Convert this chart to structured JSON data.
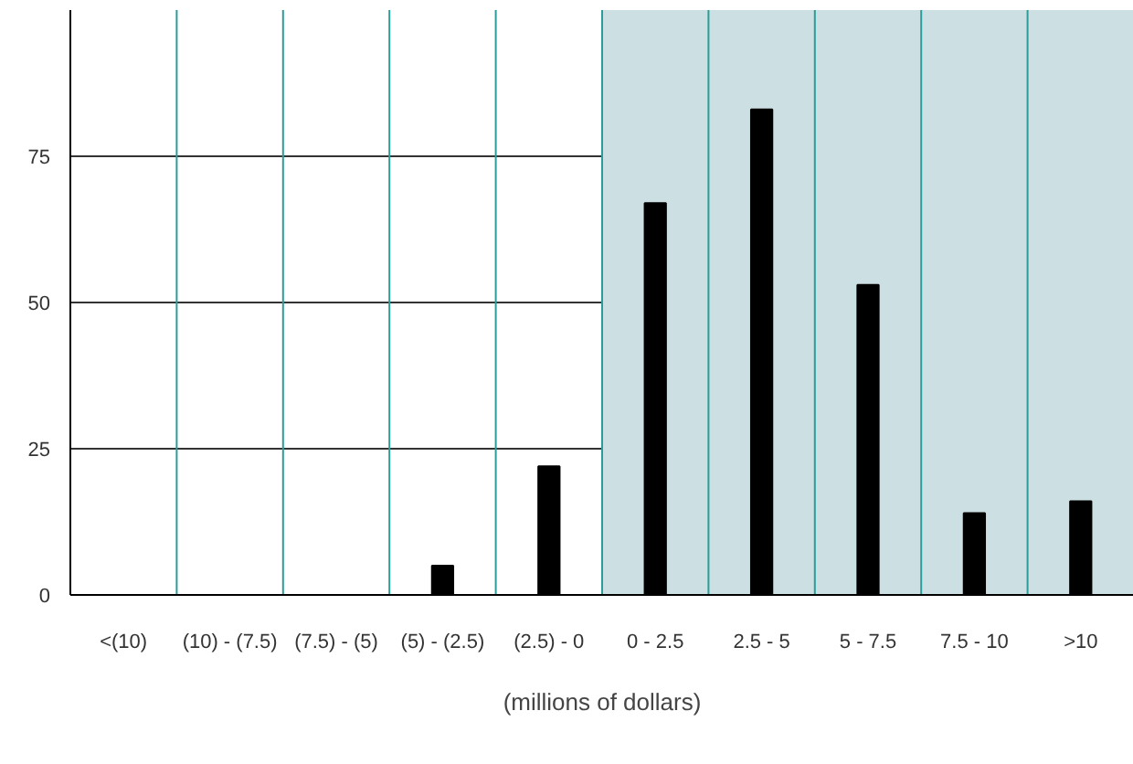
{
  "chart_data": {
    "type": "bar",
    "xlabel": "(millions of dollars)",
    "categories": [
      "<(10)",
      "(10) - (7.5)",
      "(7.5) - (5)",
      "(5) - (2.5)",
      "(2.5) - 0",
      "0 - 2.5",
      "2.5 - 5",
      "5 - 7.5",
      "7.5 - 10",
      ">10"
    ],
    "values": [
      0,
      0,
      0,
      5,
      22,
      67,
      83,
      53,
      14,
      16
    ],
    "color": "#000000",
    "ylim": [
      0,
      100
    ],
    "yticks": [
      0,
      25,
      50,
      75
    ],
    "grid": true,
    "bands": [
      {
        "axis": "x",
        "from": "0 - 2.5",
        "to": ">10",
        "color": "#cce0e3"
      }
    ]
  }
}
